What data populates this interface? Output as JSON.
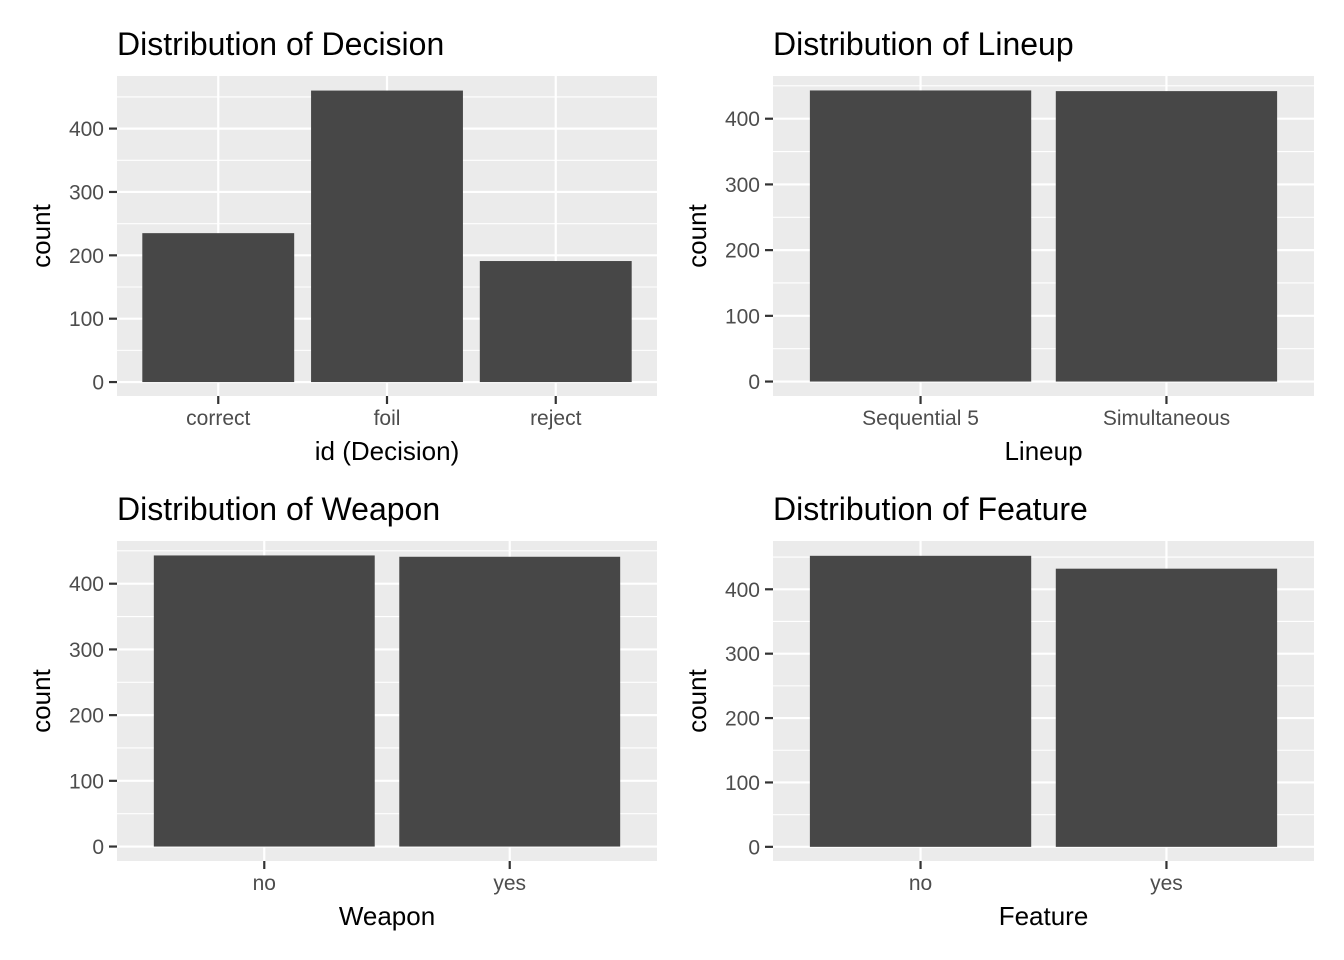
{
  "chart_data": [
    {
      "type": "bar",
      "title": "Distribution of Decision",
      "xlabel": "id (Decision)",
      "ylabel": "count",
      "categories": [
        "correct",
        "foil",
        "reject"
      ],
      "values": [
        235,
        460,
        191
      ],
      "ylim": [
        -22,
        483
      ],
      "yticks": [
        0,
        100,
        200,
        300,
        400
      ],
      "grid": true
    },
    {
      "type": "bar",
      "title": "Distribution of Lineup",
      "xlabel": "Lineup",
      "ylabel": "count",
      "categories": [
        "Sequential 5",
        "Simultaneous"
      ],
      "values": [
        443,
        442
      ],
      "ylim": [
        -22,
        465
      ],
      "yticks": [
        0,
        100,
        200,
        300,
        400
      ],
      "grid": true
    },
    {
      "type": "bar",
      "title": "Distribution of Weapon",
      "xlabel": "Weapon",
      "ylabel": "count",
      "categories": [
        "no",
        "yes"
      ],
      "values": [
        443,
        441
      ],
      "ylim": [
        -22,
        465
      ],
      "yticks": [
        0,
        100,
        200,
        300,
        400
      ],
      "grid": true
    },
    {
      "type": "bar",
      "title": "Distribution of Feature",
      "xlabel": "Feature",
      "ylabel": "count",
      "categories": [
        "no",
        "yes"
      ],
      "values": [
        452,
        432
      ],
      "ylim": [
        -22,
        475
      ],
      "yticks": [
        0,
        100,
        200,
        300,
        400
      ],
      "grid": true
    }
  ]
}
